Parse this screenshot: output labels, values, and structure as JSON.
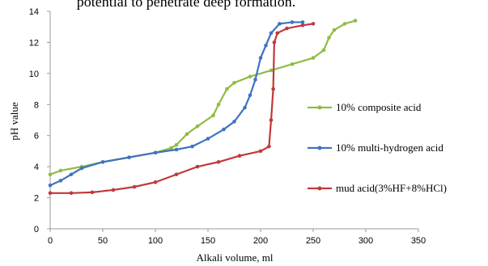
{
  "context_text": "potential to penetrate deep formation.",
  "chart_data": {
    "type": "line",
    "x_label": "Alkali volume, ml",
    "y_label": "pH value",
    "xlim": [
      0,
      350
    ],
    "xticks": [
      0,
      50,
      100,
      150,
      200,
      250,
      300,
      350
    ],
    "ylim": [
      0,
      14
    ],
    "yticks": [
      0,
      2,
      4,
      6,
      8,
      10,
      12,
      14
    ],
    "grid": false,
    "legend": "right",
    "series": [
      {
        "name": "10% composite acid",
        "color": "#8fbc45",
        "x": [
          0,
          10,
          30,
          50,
          75,
          100,
          115,
          120,
          130,
          140,
          155,
          160,
          168,
          175,
          190,
          210,
          230,
          250,
          260,
          265,
          270,
          280,
          290
        ],
        "values": [
          3.5,
          3.75,
          4.0,
          4.3,
          4.6,
          4.9,
          5.2,
          5.4,
          6.1,
          6.6,
          7.3,
          8.0,
          9.0,
          9.4,
          9.8,
          10.2,
          10.6,
          11.0,
          11.5,
          12.3,
          12.8,
          13.2,
          13.4
        ]
      },
      {
        "name": "10% multi-hydrogen acid",
        "color": "#3f73c0",
        "x": [
          0,
          10,
          20,
          30,
          50,
          75,
          100,
          120,
          135,
          150,
          165,
          175,
          185,
          190,
          195,
          200,
          205,
          210,
          218,
          230,
          240
        ],
        "values": [
          2.8,
          3.1,
          3.5,
          3.9,
          4.3,
          4.6,
          4.9,
          5.1,
          5.3,
          5.8,
          6.4,
          6.9,
          7.8,
          8.6,
          9.6,
          11.0,
          11.8,
          12.6,
          13.2,
          13.3,
          13.3
        ]
      },
      {
        "name": "mud acid(3%HF+8%HCl)",
        "color": "#c0393b",
        "x": [
          0,
          20,
          40,
          60,
          80,
          100,
          120,
          140,
          160,
          180,
          200,
          208,
          210,
          212,
          213,
          216,
          225,
          240,
          250
        ],
        "values": [
          2.3,
          2.3,
          2.35,
          2.5,
          2.7,
          3.0,
          3.5,
          4.0,
          4.3,
          4.7,
          5.0,
          5.3,
          7.0,
          9.0,
          12.0,
          12.6,
          12.9,
          13.1,
          13.2
        ]
      }
    ]
  }
}
